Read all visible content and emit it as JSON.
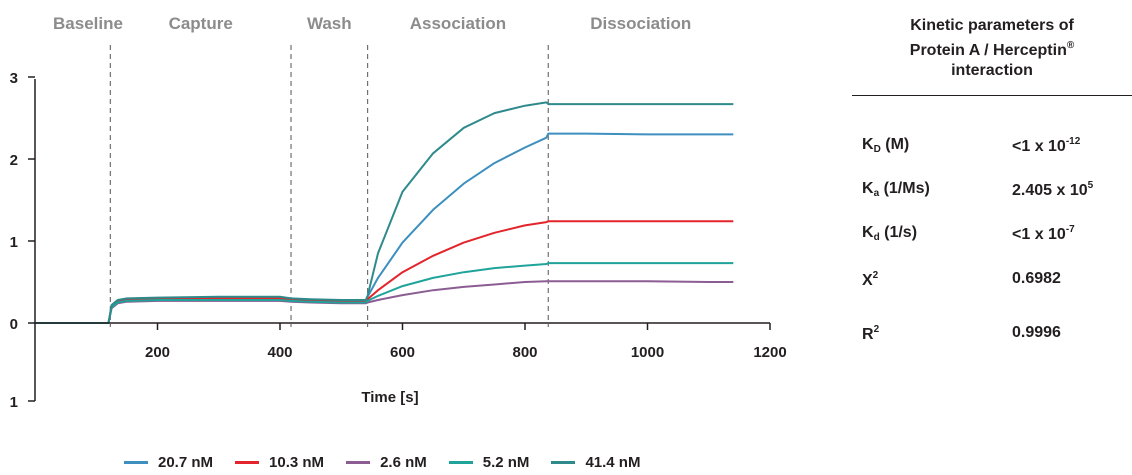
{
  "chart_data": {
    "type": "line",
    "xlabel": "Time [s]",
    "ylabel": "",
    "xlim": [
      0,
      1200
    ],
    "ylim": [
      -1,
      3
    ],
    "x_ticks": [
      200,
      400,
      600,
      800,
      1000,
      1200
    ],
    "y_ticks": [
      0,
      1,
      2,
      3
    ],
    "y_tick_labels": [
      "0",
      "1",
      "2",
      "3"
    ],
    "bottom_tick_label": "1",
    "grid": false,
    "legend_position": "bottom",
    "phase_labels": [
      "Baseline",
      "Capture",
      "Wash",
      "Association",
      "Dissociation"
    ],
    "phase_boundaries": [
      123,
      418,
      543,
      838
    ],
    "series": [
      {
        "name": "20.7 nM",
        "color": "#3d8fbf",
        "x": [
          0,
          120,
          125,
          135,
          150,
          200,
          300,
          400,
          418,
          450,
          500,
          540,
          543,
          560,
          600,
          650,
          700,
          750,
          800,
          835,
          838,
          900,
          1000,
          1100,
          1140
        ],
        "y": [
          0,
          0,
          0.2,
          0.26,
          0.28,
          0.29,
          0.3,
          0.3,
          0.28,
          0.27,
          0.26,
          0.26,
          0.32,
          0.55,
          0.98,
          1.38,
          1.7,
          1.95,
          2.14,
          2.26,
          2.31,
          2.31,
          2.3,
          2.3,
          2.3
        ]
      },
      {
        "name": "10.3 nM",
        "color": "#e3242b",
        "x": [
          0,
          120,
          125,
          135,
          150,
          200,
          300,
          400,
          418,
          450,
          500,
          540,
          543,
          560,
          600,
          650,
          700,
          750,
          800,
          835,
          838,
          900,
          1000,
          1100,
          1140
        ],
        "y": [
          0,
          0,
          0.2,
          0.26,
          0.28,
          0.29,
          0.3,
          0.3,
          0.28,
          0.27,
          0.26,
          0.26,
          0.29,
          0.4,
          0.62,
          0.82,
          0.98,
          1.1,
          1.19,
          1.23,
          1.24,
          1.24,
          1.24,
          1.24,
          1.24
        ]
      },
      {
        "name": "2.6 nM",
        "color": "#8b5d93",
        "x": [
          0,
          120,
          125,
          135,
          150,
          200,
          300,
          400,
          418,
          450,
          500,
          540,
          543,
          560,
          600,
          650,
          700,
          750,
          800,
          835,
          838,
          900,
          1000,
          1100,
          1140
        ],
        "y": [
          0,
          0,
          0.18,
          0.24,
          0.26,
          0.27,
          0.27,
          0.27,
          0.26,
          0.25,
          0.24,
          0.24,
          0.25,
          0.28,
          0.34,
          0.4,
          0.44,
          0.47,
          0.5,
          0.51,
          0.51,
          0.51,
          0.51,
          0.5,
          0.5
        ]
      },
      {
        "name": "5.2 nM",
        "color": "#1fa39a",
        "x": [
          0,
          120,
          125,
          135,
          150,
          200,
          300,
          400,
          418,
          450,
          500,
          540,
          543,
          560,
          600,
          650,
          700,
          750,
          800,
          835,
          838,
          900,
          1000,
          1100,
          1140
        ],
        "y": [
          0,
          0,
          0.19,
          0.25,
          0.27,
          0.28,
          0.28,
          0.28,
          0.27,
          0.26,
          0.25,
          0.25,
          0.27,
          0.33,
          0.45,
          0.55,
          0.62,
          0.67,
          0.7,
          0.72,
          0.73,
          0.73,
          0.73,
          0.73,
          0.73
        ]
      },
      {
        "name": "41.4 nM",
        "color": "#2f8a8c",
        "x": [
          0,
          120,
          125,
          135,
          150,
          200,
          300,
          400,
          418,
          450,
          500,
          540,
          543,
          560,
          600,
          650,
          700,
          750,
          800,
          835,
          838,
          900,
          1000,
          1100,
          1140
        ],
        "y": [
          0,
          0,
          0.22,
          0.28,
          0.3,
          0.31,
          0.32,
          0.32,
          0.3,
          0.29,
          0.28,
          0.28,
          0.33,
          0.85,
          1.6,
          2.07,
          2.38,
          2.56,
          2.65,
          2.69,
          2.67,
          2.67,
          2.67,
          2.67,
          2.67
        ]
      }
    ]
  },
  "legend": {
    "items": [
      {
        "label": "20.7 nM",
        "color": "#3d8fbf"
      },
      {
        "label": "10.3 nM",
        "color": "#e3242b"
      },
      {
        "label": "2.6 nM",
        "color": "#8b5d93"
      },
      {
        "label": "5.2 nM",
        "color": "#1fa39a"
      },
      {
        "label": "41.4 nM",
        "color": "#2f8a8c"
      }
    ]
  },
  "kinetics": {
    "title_line1": "Kinetic parameters of",
    "title_line2": "Protein A / Herceptin",
    "title_mark": "®",
    "title_line3": "interaction",
    "rows": [
      {
        "sym": "K",
        "sub": "D",
        "unit": " (M)",
        "val": "<1 x 10",
        "exp": "-12"
      },
      {
        "sym": "K",
        "sub": "a",
        "unit": " (1/Ms)",
        "val": "2.405 x 10",
        "exp": "5"
      },
      {
        "sym": "K",
        "sub": "d",
        "unit": " (1/s)",
        "val": "<1 x 10",
        "exp": "-7"
      },
      {
        "sym": "X",
        "sup": "2",
        "val": "0.6982"
      },
      {
        "sym": "R",
        "sup": "2",
        "val": "0.9996"
      }
    ]
  }
}
